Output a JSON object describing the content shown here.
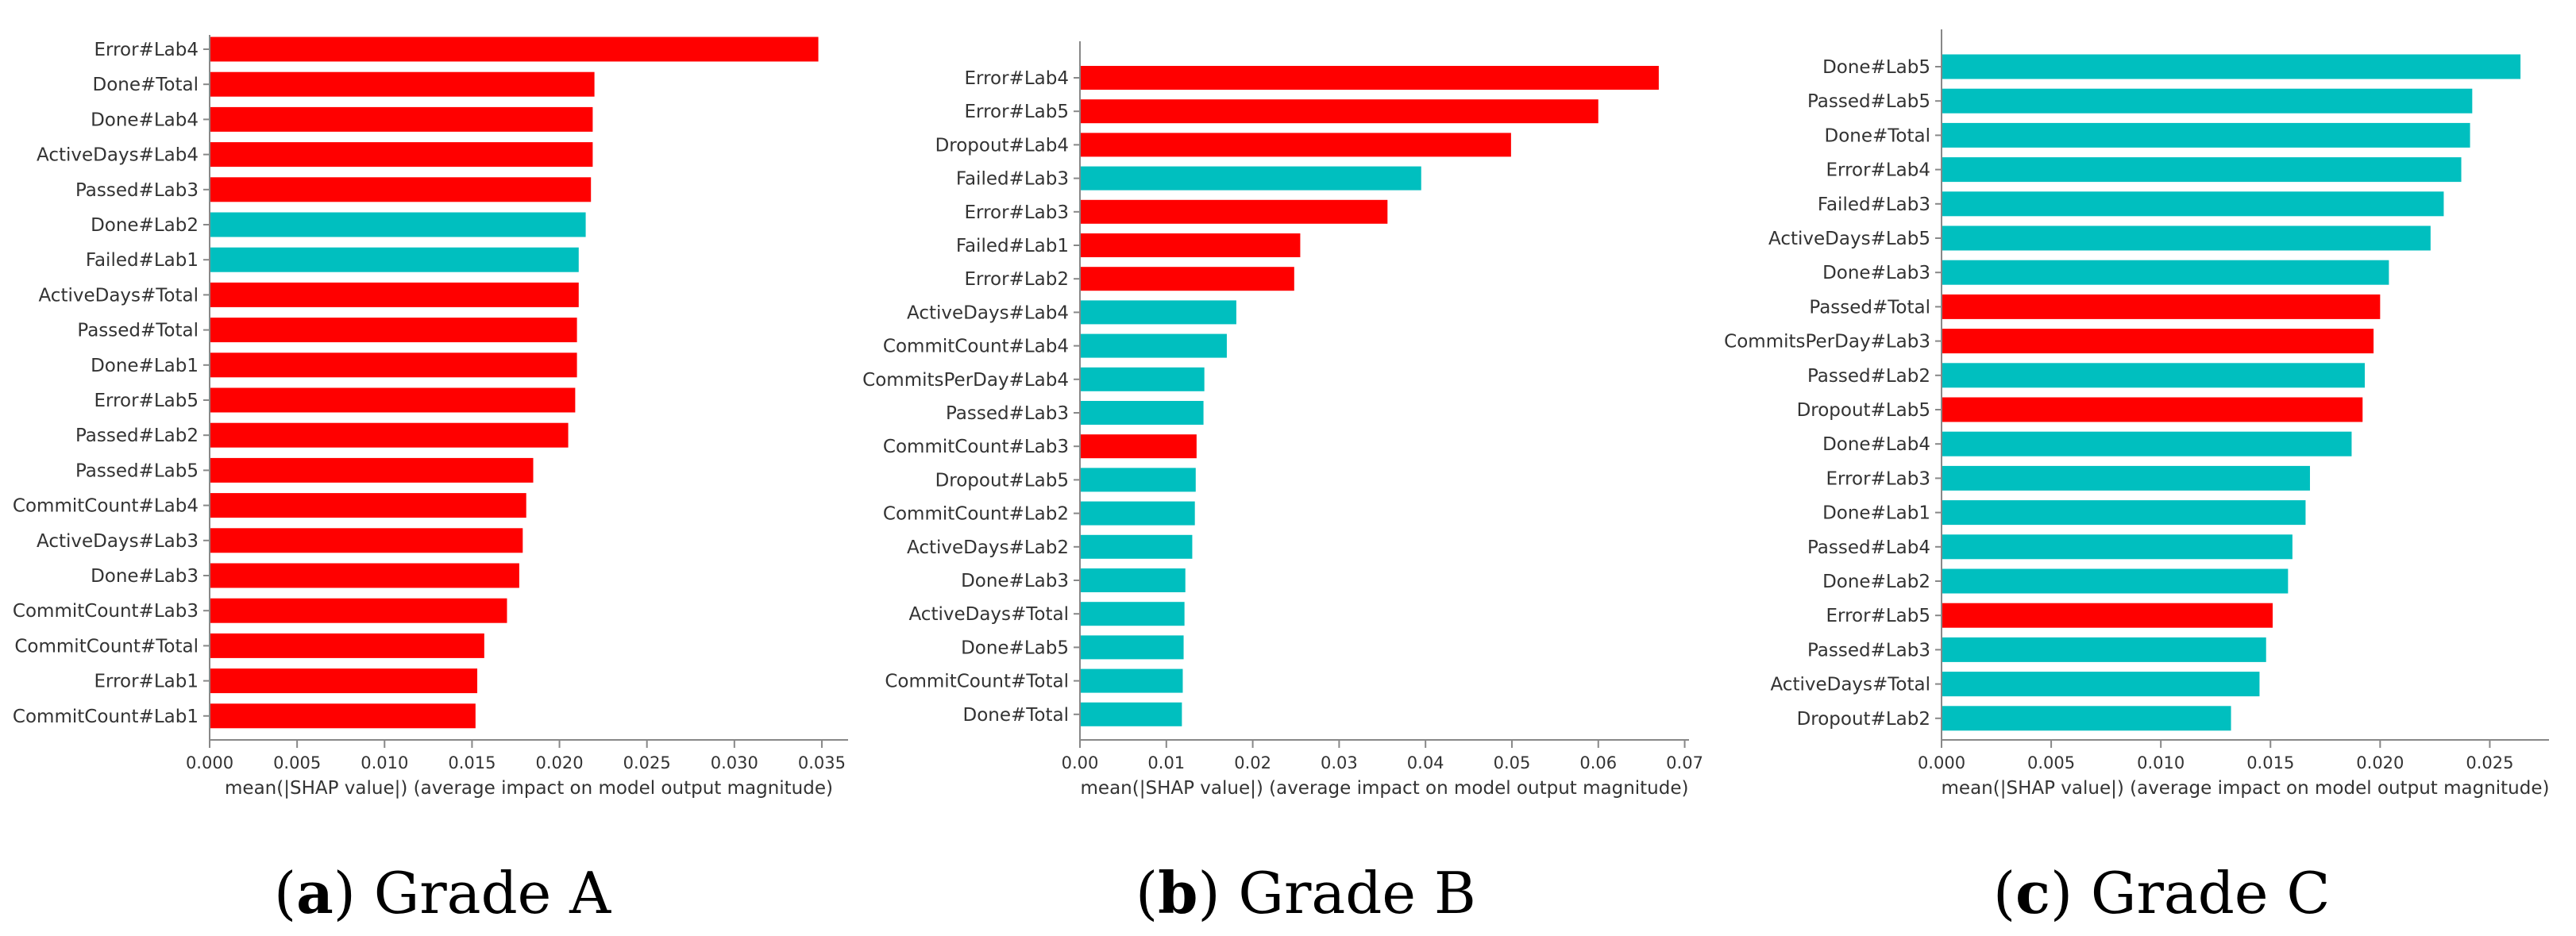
{
  "colors": {
    "red": "#ff0000",
    "teal": "#00bfbf",
    "axis": "#888888",
    "text": "#333333"
  },
  "chart_data": [
    {
      "type": "bar",
      "orientation": "horizontal",
      "title": "Grade A",
      "caption": {
        "letter": "a",
        "text": "Grade A"
      },
      "xlabel": "mean(|SHAP value|) (average impact on model output magnitude)",
      "xlim": [
        0,
        0.0365
      ],
      "xticks": [
        0.0,
        0.005,
        0.01,
        0.015,
        0.02,
        0.025,
        0.03,
        0.035
      ],
      "xtick_labels": [
        "0.000",
        "0.005",
        "0.010",
        "0.015",
        "0.020",
        "0.025",
        "0.030",
        "0.035"
      ],
      "categories": [
        "Error#Lab4",
        "Done#Total",
        "Done#Lab4",
        "ActiveDays#Lab4",
        "Passed#Lab3",
        "Done#Lab2",
        "Failed#Lab1",
        "ActiveDays#Total",
        "Passed#Total",
        "Done#Lab1",
        "Error#Lab5",
        "Passed#Lab2",
        "Passed#Lab5",
        "CommitCount#Lab4",
        "ActiveDays#Lab3",
        "Done#Lab3",
        "CommitCount#Lab3",
        "CommitCount#Total",
        "Error#Lab1",
        "CommitCount#Lab1"
      ],
      "values": [
        0.0348,
        0.022,
        0.0219,
        0.0219,
        0.0218,
        0.0215,
        0.0211,
        0.0211,
        0.021,
        0.021,
        0.0209,
        0.0205,
        0.0185,
        0.0181,
        0.0179,
        0.0177,
        0.017,
        0.0157,
        0.0153,
        0.0152
      ],
      "colors": [
        "red",
        "red",
        "red",
        "red",
        "red",
        "teal",
        "teal",
        "red",
        "red",
        "red",
        "red",
        "red",
        "red",
        "red",
        "red",
        "red",
        "red",
        "red",
        "red",
        "red"
      ]
    },
    {
      "type": "bar",
      "orientation": "horizontal",
      "title": "Grade B",
      "caption": {
        "letter": "b",
        "text": "Grade B"
      },
      "xlabel": "mean(|SHAP value|) (average impact on model output magnitude)",
      "xlim": [
        0,
        0.0705
      ],
      "xticks": [
        0.0,
        0.01,
        0.02,
        0.03,
        0.04,
        0.05,
        0.06,
        0.07
      ],
      "xtick_labels": [
        "0.00",
        "0.01",
        "0.02",
        "0.03",
        "0.04",
        "0.05",
        "0.06",
        "0.07"
      ],
      "categories": [
        "Error#Lab4",
        "Error#Lab5",
        "Dropout#Lab4",
        "Failed#Lab3",
        "Error#Lab3",
        "Failed#Lab1",
        "Error#Lab2",
        "ActiveDays#Lab4",
        "CommitCount#Lab4",
        "CommitsPerDay#Lab4",
        "Passed#Lab3",
        "CommitCount#Lab3",
        "Dropout#Lab5",
        "CommitCount#Lab2",
        "ActiveDays#Lab2",
        "Done#Lab3",
        "ActiveDays#Total",
        "Done#Lab5",
        "CommitCount#Total",
        "Done#Total"
      ],
      "values": [
        0.067,
        0.06,
        0.0499,
        0.0395,
        0.0356,
        0.0255,
        0.0248,
        0.0181,
        0.017,
        0.0144,
        0.0143,
        0.0135,
        0.0134,
        0.0133,
        0.013,
        0.0122,
        0.0121,
        0.012,
        0.0119,
        0.0118
      ],
      "colors": [
        "red",
        "red",
        "red",
        "teal",
        "red",
        "red",
        "red",
        "teal",
        "teal",
        "teal",
        "teal",
        "red",
        "teal",
        "teal",
        "teal",
        "teal",
        "teal",
        "teal",
        "teal",
        "teal"
      ]
    },
    {
      "type": "bar",
      "orientation": "horizontal",
      "title": "Grade C",
      "caption": {
        "letter": "c",
        "text": "Grade C"
      },
      "xlabel": "mean(|SHAP value|) (average impact on model output magnitude)",
      "xlim": [
        0,
        0.0277
      ],
      "xticks": [
        0.0,
        0.005,
        0.01,
        0.015,
        0.02,
        0.025
      ],
      "xtick_labels": [
        "0.000",
        "0.005",
        "0.010",
        "0.015",
        "0.020",
        "0.025"
      ],
      "categories": [
        "Done#Lab5",
        "Passed#Lab5",
        "Done#Total",
        "Error#Lab4",
        "Failed#Lab3",
        "ActiveDays#Lab5",
        "Done#Lab3",
        "Passed#Total",
        "CommitsPerDay#Lab3",
        "Passed#Lab2",
        "Dropout#Lab5",
        "Done#Lab4",
        "Error#Lab3",
        "Done#Lab1",
        "Passed#Lab4",
        "Done#Lab2",
        "Error#Lab5",
        "Passed#Lab3",
        "ActiveDays#Total",
        "Dropout#Lab2"
      ],
      "values": [
        0.0264,
        0.0242,
        0.0241,
        0.0237,
        0.0229,
        0.0223,
        0.0204,
        0.02,
        0.0197,
        0.0193,
        0.0192,
        0.0187,
        0.0168,
        0.0166,
        0.016,
        0.0158,
        0.0151,
        0.0148,
        0.0145,
        0.0132
      ],
      "colors": [
        "teal",
        "teal",
        "teal",
        "teal",
        "teal",
        "teal",
        "teal",
        "red",
        "red",
        "teal",
        "red",
        "teal",
        "teal",
        "teal",
        "teal",
        "teal",
        "red",
        "teal",
        "teal",
        "teal"
      ]
    }
  ]
}
